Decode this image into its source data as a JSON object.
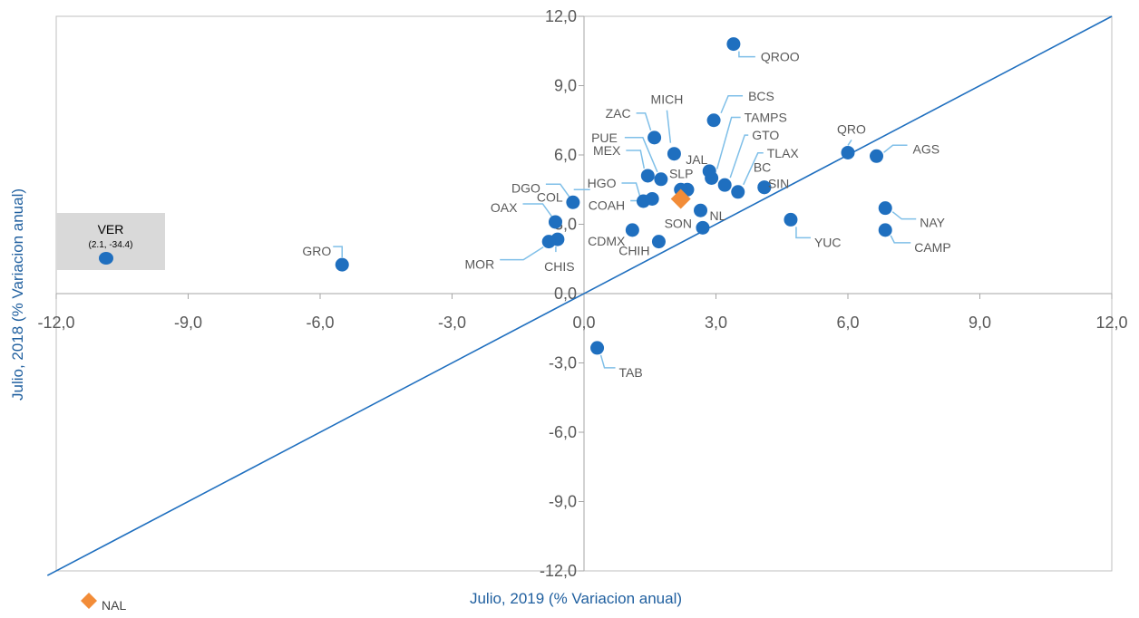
{
  "chart_data": {
    "type": "scatter",
    "title": "",
    "xlabel": "Julio, 2019 (% Variacion anual)",
    "ylabel": "Julio, 2018 (% Variacion anual)",
    "xlim": [
      -12,
      12
    ],
    "ylim": [
      -12,
      12
    ],
    "x_ticks": [
      -12,
      -9,
      -6,
      -3,
      0,
      3,
      6,
      9,
      12
    ],
    "y_ticks": [
      -12,
      -9,
      -6,
      -3,
      0,
      3,
      6,
      9,
      12
    ],
    "x_tick_labels": [
      "-12,0",
      "-9,0",
      "-6,0",
      "-3,0",
      "0,0",
      "3,0",
      "6,0",
      "9,0",
      "12,0"
    ],
    "y_tick_labels": [
      "-12,0",
      "-9,0",
      "-6,0",
      "-3,0",
      "0,0",
      "3,0",
      "6,0",
      "9,0",
      "12,0"
    ],
    "reference_line": "y = x",
    "grid": false,
    "colors": {
      "states": "#1f6fbf",
      "national": "#f28c38",
      "leader": "#7fbfe8",
      "outlier_box": "#d9d9d9"
    },
    "legend": {
      "position": "bottom-left",
      "entries": [
        "NAL"
      ]
    },
    "points": [
      {
        "label": "QROO",
        "x": 3.4,
        "y": 10.8
      },
      {
        "label": "BCS",
        "x": 2.95,
        "y": 7.5
      },
      {
        "label": "MICH",
        "x": 2.05,
        "y": 6.05
      },
      {
        "label": "ZAC",
        "x": 1.6,
        "y": 6.75
      },
      {
        "label": "TAMPS",
        "x": 2.9,
        "y": 5.0
      },
      {
        "label": "GTO",
        "x": 3.2,
        "y": 4.7
      },
      {
        "label": "TLAX",
        "x": 3.5,
        "y": 4.4
      },
      {
        "label": "BC",
        "x": 4.1,
        "y": 4.6
      },
      {
        "label": "SIN",
        "x": 4.1,
        "y": 4.6
      },
      {
        "label": "JAL",
        "x": 2.85,
        "y": 5.3
      },
      {
        "label": "SLP",
        "x": 2.35,
        "y": 4.5
      },
      {
        "label": "PUE",
        "x": 1.75,
        "y": 4.95
      },
      {
        "label": "MEX",
        "x": 1.45,
        "y": 5.1
      },
      {
        "label": "HGO",
        "x": 1.35,
        "y": 4.0
      },
      {
        "label": "COAH",
        "x": 1.55,
        "y": 4.1
      },
      {
        "label": "COL",
        "x": 2.2,
        "y": 4.5
      },
      {
        "label": "DGO",
        "x": -0.25,
        "y": 3.95
      },
      {
        "label": "OAX",
        "x": -0.65,
        "y": 3.1
      },
      {
        "label": "CHIS",
        "x": -0.6,
        "y": 2.35
      },
      {
        "label": "MOR",
        "x": -0.8,
        "y": 2.25
      },
      {
        "label": "GRO",
        "x": -5.5,
        "y": 1.25
      },
      {
        "label": "CDMX",
        "x": 1.1,
        "y": 2.75
      },
      {
        "label": "CHIH",
        "x": 1.7,
        "y": 2.25
      },
      {
        "label": "SON",
        "x": 2.7,
        "y": 2.85
      },
      {
        "label": "NL",
        "x": 2.65,
        "y": 3.6
      },
      {
        "label": "YUC",
        "x": 4.7,
        "y": 3.2
      },
      {
        "label": "QRO",
        "x": 6.0,
        "y": 6.1
      },
      {
        "label": "AGS",
        "x": 6.65,
        "y": 5.95
      },
      {
        "label": "NAY",
        "x": 6.85,
        "y": 3.7
      },
      {
        "label": "CAMP",
        "x": 6.85,
        "y": 2.75
      },
      {
        "label": "TAB",
        "x": 0.3,
        "y": -2.35
      }
    ],
    "national": {
      "label": "NAL",
      "x": 2.2,
      "y": 4.1
    },
    "outlier": {
      "label": "VER",
      "value_text": "(2.1, -34.4)",
      "x": 2.1,
      "y": -34.4
    }
  }
}
